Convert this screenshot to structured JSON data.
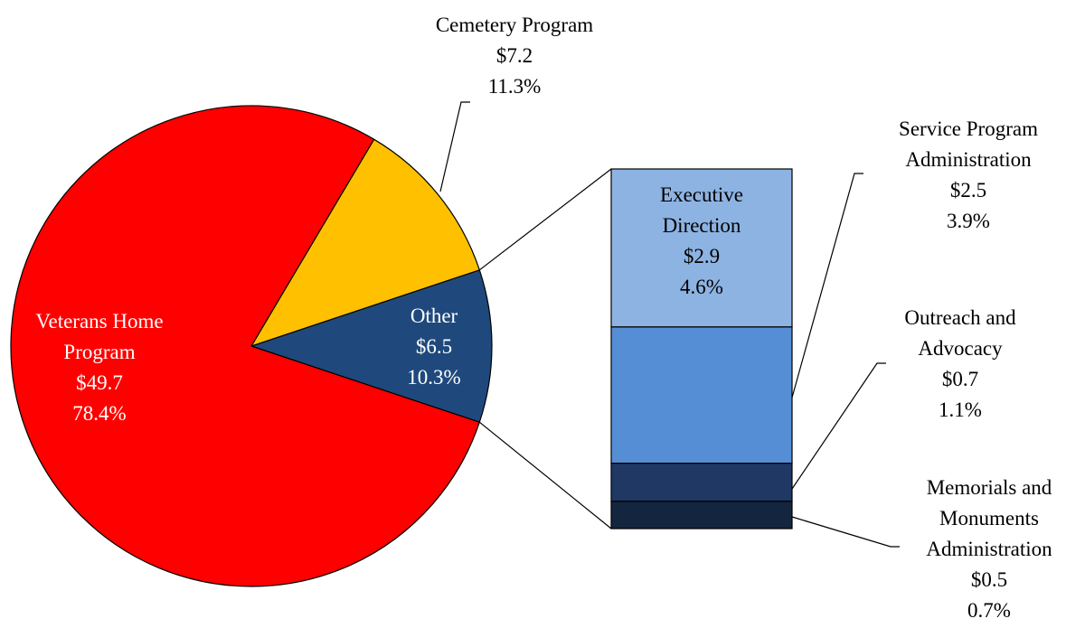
{
  "chart_data": [
    {
      "type": "pie",
      "categories": [
        "Veterans Home Program",
        "Cemetery Program",
        "Other"
      ],
      "values": [
        49.7,
        7.2,
        6.5
      ],
      "value_labels": [
        "$49.7",
        "$7.2",
        "$6.5"
      ],
      "percents": [
        78.4,
        11.3,
        10.3
      ],
      "percent_labels": [
        "78.4%",
        "11.3%",
        "10.3%"
      ],
      "colors": [
        "#ff0000",
        "#ffc000",
        "#1f497d"
      ]
    },
    {
      "type": "bar",
      "categories": [
        "Executive Direction",
        "Service Program Administration",
        "Outreach and Advocacy",
        "Memorials and Monuments Administration"
      ],
      "values": [
        2.9,
        2.5,
        0.7,
        0.5
      ],
      "value_labels": [
        "$2.9",
        "$2.5",
        "$0.7",
        "$0.5"
      ],
      "percents": [
        4.6,
        3.9,
        1.1,
        0.7
      ],
      "percent_labels": [
        "4.6%",
        "3.9%",
        "1.1%",
        "0.7%"
      ],
      "colors": [
        "#8db3e2",
        "#558ed5",
        "#1f3864",
        "#14253f"
      ]
    }
  ]
}
